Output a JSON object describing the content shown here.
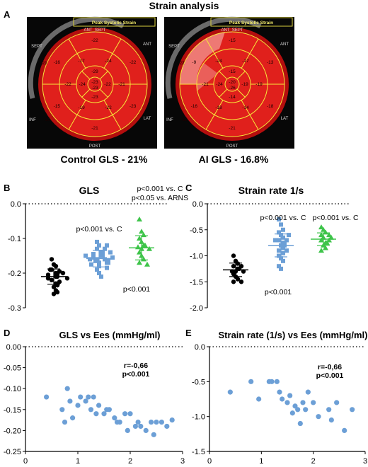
{
  "figure": {
    "title": "Strain analysis",
    "panel_labels": {
      "A": "A",
      "B": "B",
      "C": "C",
      "D": "D",
      "E": "E"
    }
  },
  "panel_a": {
    "map_title": "Peak Systolic Strain",
    "colors": {
      "dark_red": "#b40e0e",
      "red": "#e0201c",
      "light_red": "#f08a84",
      "grid": "#f6ea3a"
    },
    "control": {
      "caption": "Control GLS - 21%",
      "wall_labels": {
        "ant_sept": "ANT_SEPT",
        "ant": "ANT",
        "sept": "SEPT",
        "inf": "INF",
        "lat": "LAT",
        "post": "POST"
      },
      "segments": {
        "outer": [
          "-22",
          "-22",
          "-23",
          "-21",
          "-15",
          "-16"
        ],
        "outer_extra": [
          "-21",
          "-15"
        ],
        "middle": [
          "-24",
          "-21",
          "-22",
          "-19",
          "-22",
          "-17"
        ],
        "inner": [
          "-29",
          "-22",
          "-23",
          "-24"
        ],
        "apex": "-23",
        "apex2": "-23"
      }
    },
    "ai": {
      "caption": "AI GLS - 16.8%",
      "wall_labels": {
        "ant_sept": "ANT_SEPT",
        "ant": "ANT",
        "sept": "SEPT",
        "inf": "INF",
        "lat": "LAT",
        "post": "POST"
      },
      "segments": {
        "outer": [
          "-15",
          "-13",
          "-18",
          "-21",
          "-16",
          "-9"
        ],
        "outer_extra": [
          "-22",
          "-11"
        ],
        "middle": [
          "-17",
          "-19",
          "-14",
          "-18",
          "-21",
          "-24"
        ],
        "inner": [
          "-15",
          "-19",
          "-14",
          "-24"
        ],
        "apex": "-20",
        "apex2": "-26"
      }
    }
  },
  "chart_data": [
    {
      "panel": "B",
      "type": "scatter",
      "title": "GLS",
      "ylim": [
        -0.3,
        0.0
      ],
      "yticks": [
        "0.0",
        "-0.1",
        "-0.2",
        "-0.3"
      ],
      "groups": [
        {
          "name": "Control",
          "color": "#000000",
          "marker": "circle",
          "values": [
            -0.16,
            -0.175,
            -0.18,
            -0.19,
            -0.195,
            -0.2,
            -0.205,
            -0.205,
            -0.21,
            -0.21,
            -0.215,
            -0.215,
            -0.22,
            -0.225,
            -0.23,
            -0.235,
            -0.24,
            -0.25,
            -0.255,
            -0.26,
            -0.19,
            -0.2
          ],
          "mean": -0.21,
          "sd": 0.022
        },
        {
          "name": "ARNS",
          "color": "#6c9fd6",
          "marker": "square",
          "values": [
            -0.11,
            -0.12,
            -0.12,
            -0.13,
            -0.13,
            -0.14,
            -0.14,
            -0.145,
            -0.15,
            -0.15,
            -0.155,
            -0.155,
            -0.16,
            -0.16,
            -0.165,
            -0.165,
            -0.17,
            -0.17,
            -0.175,
            -0.18,
            -0.185,
            -0.19,
            -0.2,
            -0.21,
            -0.15,
            -0.14,
            -0.16,
            -0.17
          ],
          "mean": -0.158,
          "sd": 0.024
        },
        {
          "name": "AI",
          "color": "#3ec44a",
          "marker": "triangle",
          "values": [
            -0.045,
            -0.08,
            -0.09,
            -0.1,
            -0.11,
            -0.12,
            -0.12,
            -0.13,
            -0.13,
            -0.14,
            -0.15,
            -0.16,
            -0.17,
            -0.175,
            -0.125
          ],
          "mean": -0.127,
          "sd": 0.035
        }
      ],
      "annotations": [
        "p<0.001 vs. C",
        "p<0.05 vs. ARNS",
        "p<0.001 vs. C",
        "p<0.001"
      ]
    },
    {
      "panel": "C",
      "type": "scatter",
      "title": "Strain rate 1/s",
      "ylim": [
        -2.0,
        0.0
      ],
      "yticks": [
        "0.0",
        "-0.5",
        "-1.0",
        "-1.5",
        "-2.0"
      ],
      "groups": [
        {
          "name": "Control",
          "color": "#000000",
          "marker": "circle",
          "values": [
            -1.0,
            -1.1,
            -1.15,
            -1.2,
            -1.2,
            -1.25,
            -1.25,
            -1.3,
            -1.3,
            -1.35,
            -1.4,
            -1.45,
            -1.5,
            -1.5,
            -1.3
          ],
          "mean": -1.27,
          "sd": 0.13
        },
        {
          "name": "ARNS",
          "color": "#6c9fd6",
          "marker": "square",
          "values": [
            -0.3,
            -0.4,
            -0.5,
            -0.55,
            -0.6,
            -0.65,
            -0.7,
            -0.7,
            -0.75,
            -0.75,
            -0.8,
            -0.85,
            -0.9,
            -0.9,
            -0.95,
            -1.0,
            -1.05,
            -1.1,
            -1.2,
            -1.25,
            -0.6,
            -0.8,
            -0.7
          ],
          "mean": -0.8,
          "sd": 0.22
        },
        {
          "name": "AI",
          "color": "#3ec44a",
          "marker": "triangle",
          "values": [
            -0.45,
            -0.5,
            -0.55,
            -0.6,
            -0.65,
            -0.65,
            -0.7,
            -0.7,
            -0.75,
            -0.75,
            -0.8,
            -0.85,
            -0.9,
            -0.6
          ],
          "mean": -0.68,
          "sd": 0.12
        }
      ],
      "annotations": [
        "p<0.001 vs. C",
        "p<0.001 vs. C",
        "p<0.001"
      ]
    },
    {
      "panel": "D",
      "type": "scatter",
      "title": "GLS vs Ees (mmHg/ml)",
      "xlim": [
        0,
        3
      ],
      "ylim": [
        -0.25,
        0.0
      ],
      "xticks": [
        "0",
        "1",
        "2",
        "3"
      ],
      "yticks": [
        "0.00",
        "-0.05",
        "-0.10",
        "-0.15",
        "-0.20",
        "-0.25"
      ],
      "color": "#6c9fd6",
      "points": [
        [
          0.4,
          -0.12
        ],
        [
          0.7,
          -0.15
        ],
        [
          0.75,
          -0.18
        ],
        [
          0.8,
          -0.1
        ],
        [
          0.85,
          -0.13
        ],
        [
          0.9,
          -0.17
        ],
        [
          1.0,
          -0.14
        ],
        [
          1.05,
          -0.12
        ],
        [
          1.15,
          -0.13
        ],
        [
          1.2,
          -0.12
        ],
        [
          1.25,
          -0.15
        ],
        [
          1.3,
          -0.12
        ],
        [
          1.35,
          -0.16
        ],
        [
          1.4,
          -0.14
        ],
        [
          1.5,
          -0.16
        ],
        [
          1.55,
          -0.15
        ],
        [
          1.6,
          -0.15
        ],
        [
          1.7,
          -0.17
        ],
        [
          1.75,
          -0.18
        ],
        [
          1.8,
          -0.18
        ],
        [
          1.9,
          -0.16
        ],
        [
          1.95,
          -0.2
        ],
        [
          2.0,
          -0.16
        ],
        [
          2.1,
          -0.19
        ],
        [
          2.15,
          -0.18
        ],
        [
          2.2,
          -0.19
        ],
        [
          2.3,
          -0.2
        ],
        [
          2.4,
          -0.18
        ],
        [
          2.45,
          -0.21
        ],
        [
          2.5,
          -0.18
        ],
        [
          2.6,
          -0.18
        ],
        [
          2.7,
          -0.19
        ],
        [
          2.8,
          -0.175
        ]
      ],
      "annotation": [
        "r=-0,66",
        "p<0.001"
      ]
    },
    {
      "panel": "E",
      "type": "scatter",
      "title": "Strain rate (1/s) vs Ees (mmHg/ml)",
      "xlim": [
        0,
        3
      ],
      "ylim": [
        -1.5,
        0.0
      ],
      "xticks": [
        "0",
        "1",
        "2",
        "3"
      ],
      "yticks": [
        "0.0",
        "-0.5",
        "-1.0",
        "-1.5"
      ],
      "color": "#6c9fd6",
      "points": [
        [
          0.4,
          -0.65
        ],
        [
          0.8,
          -0.5
        ],
        [
          0.95,
          -0.75
        ],
        [
          1.15,
          -0.5
        ],
        [
          1.2,
          -0.5
        ],
        [
          1.3,
          -0.5
        ],
        [
          1.35,
          -0.65
        ],
        [
          1.4,
          -0.75
        ],
        [
          1.5,
          -0.8
        ],
        [
          1.55,
          -0.7
        ],
        [
          1.6,
          -0.95
        ],
        [
          1.65,
          -0.85
        ],
        [
          1.7,
          -0.9
        ],
        [
          1.75,
          -1.1
        ],
        [
          1.8,
          -0.8
        ],
        [
          1.85,
          -0.9
        ],
        [
          1.9,
          -0.65
        ],
        [
          2.0,
          -0.8
        ],
        [
          2.1,
          -1.0
        ],
        [
          2.3,
          -0.9
        ],
        [
          2.35,
          -1.05
        ],
        [
          2.45,
          -0.8
        ],
        [
          2.6,
          -1.2
        ],
        [
          2.75,
          -0.9
        ]
      ],
      "annotation": [
        "r=-0,66",
        "p<0.001"
      ]
    }
  ]
}
